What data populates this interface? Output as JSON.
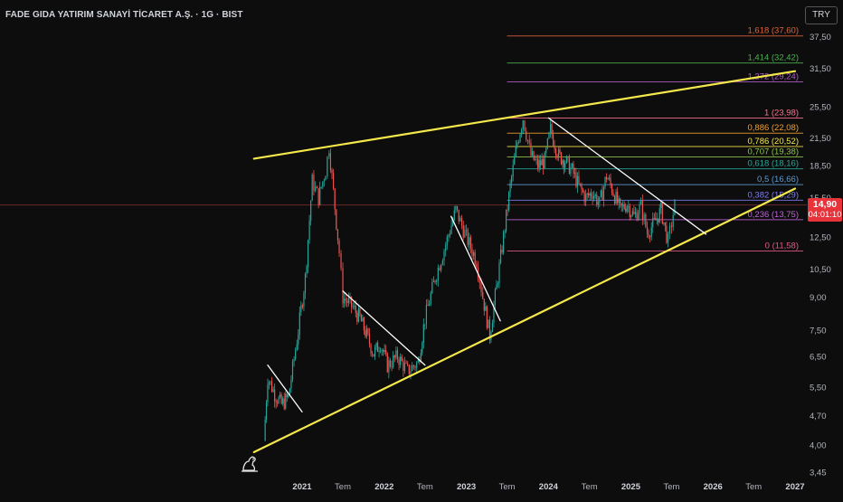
{
  "header": {
    "title": "FADE GIDA YATIRIM SANAYİ TİCARET A.Ş. · 1G · BIST",
    "currency": "TRY"
  },
  "last_price": {
    "price": "14,90",
    "countdown": "04:01:10",
    "value": 14.9
  },
  "colors": {
    "background": "#0d0d0d",
    "trendline": "#f5e84a",
    "up": "#26a69a",
    "down": "#ef5350",
    "price_tag": "#e8333a"
  },
  "chart_data": {
    "type": "candlestick",
    "y_scale": "log",
    "ylim": [
      3.45,
      44
    ],
    "price_axis_labels": [
      "37,50",
      "31,50",
      "25,50",
      "21,50",
      "18,50",
      "15,50",
      "12,50",
      "10,50",
      "9,00",
      "7,50",
      "6,50",
      "5,50",
      "4,70",
      "4,00",
      "3,45"
    ],
    "price_axis_values": [
      37.5,
      31.5,
      25.5,
      21.5,
      18.5,
      15.5,
      12.5,
      10.5,
      9.0,
      7.5,
      6.5,
      5.5,
      4.7,
      4.0,
      3.45
    ],
    "time_axis_labels": [
      "2021",
      "Tem",
      "2022",
      "Tem",
      "2023",
      "Tem",
      "2024",
      "Tem",
      "2025",
      "Tem",
      "2026",
      "Tem",
      "2027"
    ],
    "time_axis_dates": [
      "2021-01-01",
      "2021-07-01",
      "2022-01-01",
      "2022-07-01",
      "2023-01-01",
      "2023-07-01",
      "2024-01-01",
      "2024-07-01",
      "2025-01-01",
      "2025-07-01",
      "2026-01-01",
      "2026-07-01",
      "2027-01-01"
    ],
    "price_path": [
      [
        "2020-07-15",
        4.1
      ],
      [
        "2020-08-01",
        5.8
      ],
      [
        "2020-09-01",
        5.3
      ],
      [
        "2020-10-01",
        5.0
      ],
      [
        "2020-11-01",
        5.2
      ],
      [
        "2020-12-15",
        7.5
      ],
      [
        "2021-01-15",
        10.0
      ],
      [
        "2021-02-15",
        17.0
      ],
      [
        "2021-03-15",
        15.5
      ],
      [
        "2021-04-15",
        18.0
      ],
      [
        "2021-05-01",
        20.5
      ],
      [
        "2021-05-20",
        16.0
      ],
      [
        "2021-06-15",
        11.5
      ],
      [
        "2021-07-01",
        9.0
      ],
      [
        "2021-08-15",
        8.5
      ],
      [
        "2021-09-15",
        8.0
      ],
      [
        "2021-10-15",
        7.3
      ],
      [
        "2021-11-15",
        6.6
      ],
      [
        "2021-12-15",
        7.0
      ],
      [
        "2022-01-15",
        6.2
      ],
      [
        "2022-03-01",
        6.5
      ],
      [
        "2022-04-15",
        6.0
      ],
      [
        "2022-06-01",
        6.3
      ],
      [
        "2022-07-01",
        8.0
      ],
      [
        "2022-08-15",
        10.0
      ],
      [
        "2022-10-01",
        12.0
      ],
      [
        "2022-11-15",
        14.5
      ],
      [
        "2023-01-01",
        12.5
      ],
      [
        "2023-02-15",
        11.0
      ],
      [
        "2023-03-15",
        9.0
      ],
      [
        "2023-04-15",
        7.3
      ],
      [
        "2023-05-15",
        9.5
      ],
      [
        "2023-06-15",
        12.5
      ],
      [
        "2023-07-15",
        16.5
      ],
      [
        "2023-08-15",
        21.0
      ],
      [
        "2023-09-10",
        24.0
      ],
      [
        "2023-10-15",
        19.5
      ],
      [
        "2023-11-15",
        18.5
      ],
      [
        "2023-12-15",
        19.0
      ],
      [
        "2024-01-10",
        22.5
      ],
      [
        "2024-02-15",
        19.5
      ],
      [
        "2024-03-15",
        19.0
      ],
      [
        "2024-04-15",
        18.0
      ],
      [
        "2024-05-15",
        16.5
      ],
      [
        "2024-06-15",
        15.5
      ],
      [
        "2024-07-15",
        16.0
      ],
      [
        "2024-08-15",
        15.0
      ],
      [
        "2024-09-15",
        17.5
      ],
      [
        "2024-10-15",
        16.0
      ],
      [
        "2024-11-15",
        14.5
      ],
      [
        "2024-12-15",
        15.0
      ],
      [
        "2025-01-15",
        14.0
      ],
      [
        "2025-02-15",
        14.8
      ],
      [
        "2025-03-15",
        12.8
      ],
      [
        "2025-04-15",
        13.5
      ],
      [
        "2025-05-15",
        14.5
      ],
      [
        "2025-06-15",
        12.2
      ],
      [
        "2025-07-01",
        13.5
      ],
      [
        "2025-07-15",
        14.9
      ]
    ],
    "fibonacci": [
      {
        "label": "1,618 (37,60)",
        "value": 37.6,
        "color": "#e0613a"
      },
      {
        "label": "1,414 (32,42)",
        "value": 32.42,
        "color": "#4caf50"
      },
      {
        "label": "1,272 (29,24)",
        "value": 29.24,
        "color": "#b05cc8"
      },
      {
        "label": "1 (23,98)",
        "value": 23.98,
        "color": "#ff6f91"
      },
      {
        "label": "0,886 (22,08)",
        "value": 22.08,
        "color": "#f0a030"
      },
      {
        "label": "0,786 (20,52)",
        "value": 20.52,
        "color": "#f5e84a"
      },
      {
        "label": "0,707 (19,38)",
        "value": 19.38,
        "color": "#8bc34a"
      },
      {
        "label": "0,618 (18,16)",
        "value": 18.16,
        "color": "#26a69a"
      },
      {
        "label": "0,5 (16,66)",
        "value": 16.66,
        "color": "#5b9bd5"
      },
      {
        "label": "0,382 (15,29)",
        "value": 15.29,
        "color": "#7e7ef0"
      },
      {
        "label": "0,236 (13,75)",
        "value": 13.75,
        "color": "#c062d8"
      },
      {
        "label": "0 (11,58)",
        "value": 11.58,
        "color": "#e05a8a"
      }
    ],
    "trendlines": [
      {
        "name": "upper-channel",
        "color": "#f5e84a",
        "points": [
          [
            "2020-06-01",
            19.2
          ],
          [
            "2027-01-01",
            31.0
          ]
        ]
      },
      {
        "name": "lower-channel",
        "color": "#f5e84a",
        "points": [
          [
            "2020-06-01",
            3.85
          ],
          [
            "2027-01-01",
            16.3
          ]
        ]
      },
      {
        "name": "downtrend-1",
        "color": "#ffffff",
        "points": [
          [
            "2020-08-01",
            6.2
          ],
          [
            "2021-01-01",
            4.8
          ]
        ]
      },
      {
        "name": "downtrend-2",
        "color": "#ffffff",
        "points": [
          [
            "2021-07-01",
            9.3
          ],
          [
            "2022-07-01",
            6.2
          ]
        ]
      },
      {
        "name": "downtrend-3",
        "color": "#ffffff",
        "points": [
          [
            "2022-10-25",
            14.0
          ],
          [
            "2023-06-01",
            7.9
          ]
        ]
      },
      {
        "name": "downtrend-4",
        "color": "#ffffff",
        "points": [
          [
            "2024-01-01",
            24.0
          ],
          [
            "2025-12-01",
            12.7
          ]
        ]
      }
    ]
  }
}
